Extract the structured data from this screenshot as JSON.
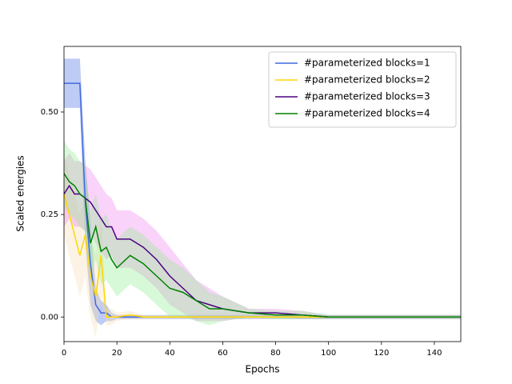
{
  "chart_data": {
    "type": "line",
    "xlabel": "Epochs",
    "ylabel": "Scaled energies",
    "x": [
      0,
      2,
      4,
      6,
      8,
      10,
      12,
      14,
      16,
      18,
      20,
      25,
      30,
      35,
      40,
      45,
      50,
      55,
      60,
      70,
      80,
      90,
      100,
      120,
      140,
      150
    ],
    "xlim": [
      0,
      150
    ],
    "ylim": [
      -0.06,
      0.66
    ],
    "xticks": [
      0,
      20,
      40,
      60,
      80,
      100,
      120,
      140
    ],
    "yticks": [
      {
        "value": 0,
        "label": "0.00"
      },
      {
        "value": 0.25,
        "label": "0.25"
      },
      {
        "value": 0.5,
        "label": "0.50"
      }
    ],
    "legend": "upper right",
    "series": [
      {
        "name": "#parameterized blocks=1",
        "color": "#4169e1",
        "band_color": "#4169e1",
        "values": [
          0.57,
          0.57,
          0.57,
          0.57,
          0.285,
          0.13,
          0.03,
          0.01,
          0.01,
          0.0,
          0.0,
          0,
          0,
          0,
          0,
          0,
          0,
          0,
          0,
          0,
          0,
          0,
          0,
          0,
          0,
          0
        ],
        "spread": [
          0.06,
          0.06,
          0.06,
          0.06,
          0.1,
          0.1,
          0.04,
          0.03,
          0.02,
          0.01,
          0.005,
          0.005,
          0.005,
          0.005,
          0.005,
          0.005,
          0.005,
          0.005,
          0.005,
          0.005,
          0.005,
          0.005,
          0.005,
          0.005,
          0.005,
          0.005
        ]
      },
      {
        "name": "#parameterized blocks=2",
        "color": "#ffd700",
        "band_color": "#f5deb3",
        "values": [
          0.3,
          0.25,
          0.2,
          0.15,
          0.2,
          0.1,
          0.05,
          0.15,
          0.0,
          0.0,
          0.0,
          0.005,
          0,
          0,
          0,
          0,
          0,
          0,
          0,
          0,
          0,
          0,
          0,
          0,
          0,
          0
        ],
        "spread": [
          0.1,
          0.1,
          0.1,
          0.1,
          0.1,
          0.1,
          0.1,
          0.1,
          0.02,
          0.02,
          0.01,
          0.01,
          0.005,
          0.005,
          0.005,
          0.005,
          0.005,
          0.005,
          0.005,
          0.005,
          0.005,
          0.005,
          0.005,
          0.005,
          0.005,
          0.005
        ]
      },
      {
        "name": "#parameterized blocks=3",
        "color": "#4b0082",
        "band_color": "#ee82ee",
        "values": [
          0.3,
          0.32,
          0.3,
          0.3,
          0.29,
          0.28,
          0.26,
          0.24,
          0.22,
          0.22,
          0.19,
          0.19,
          0.17,
          0.14,
          0.1,
          0.07,
          0.04,
          0.03,
          0.02,
          0.01,
          0.01,
          0.005,
          0,
          0,
          0,
          0
        ],
        "spread": [
          0.08,
          0.08,
          0.08,
          0.08,
          0.08,
          0.08,
          0.08,
          0.08,
          0.08,
          0.07,
          0.07,
          0.07,
          0.07,
          0.07,
          0.07,
          0.06,
          0.05,
          0.04,
          0.03,
          0.01,
          0.01,
          0.01,
          0.005,
          0.005,
          0.005,
          0.005
        ]
      },
      {
        "name": "#parameterized blocks=4",
        "color": "#008000",
        "band_color": "#90ee90",
        "values": [
          0.35,
          0.33,
          0.32,
          0.3,
          0.29,
          0.18,
          0.22,
          0.16,
          0.17,
          0.14,
          0.12,
          0.15,
          0.13,
          0.1,
          0.07,
          0.06,
          0.04,
          0.02,
          0.02,
          0.01,
          0.005,
          0.005,
          0,
          0,
          0,
          0
        ],
        "spread": [
          0.08,
          0.08,
          0.08,
          0.08,
          0.08,
          0.08,
          0.08,
          0.08,
          0.08,
          0.07,
          0.07,
          0.07,
          0.07,
          0.07,
          0.07,
          0.06,
          0.05,
          0.04,
          0.03,
          0.01,
          0.01,
          0.01,
          0.005,
          0.005,
          0.005,
          0.005
        ]
      }
    ]
  }
}
